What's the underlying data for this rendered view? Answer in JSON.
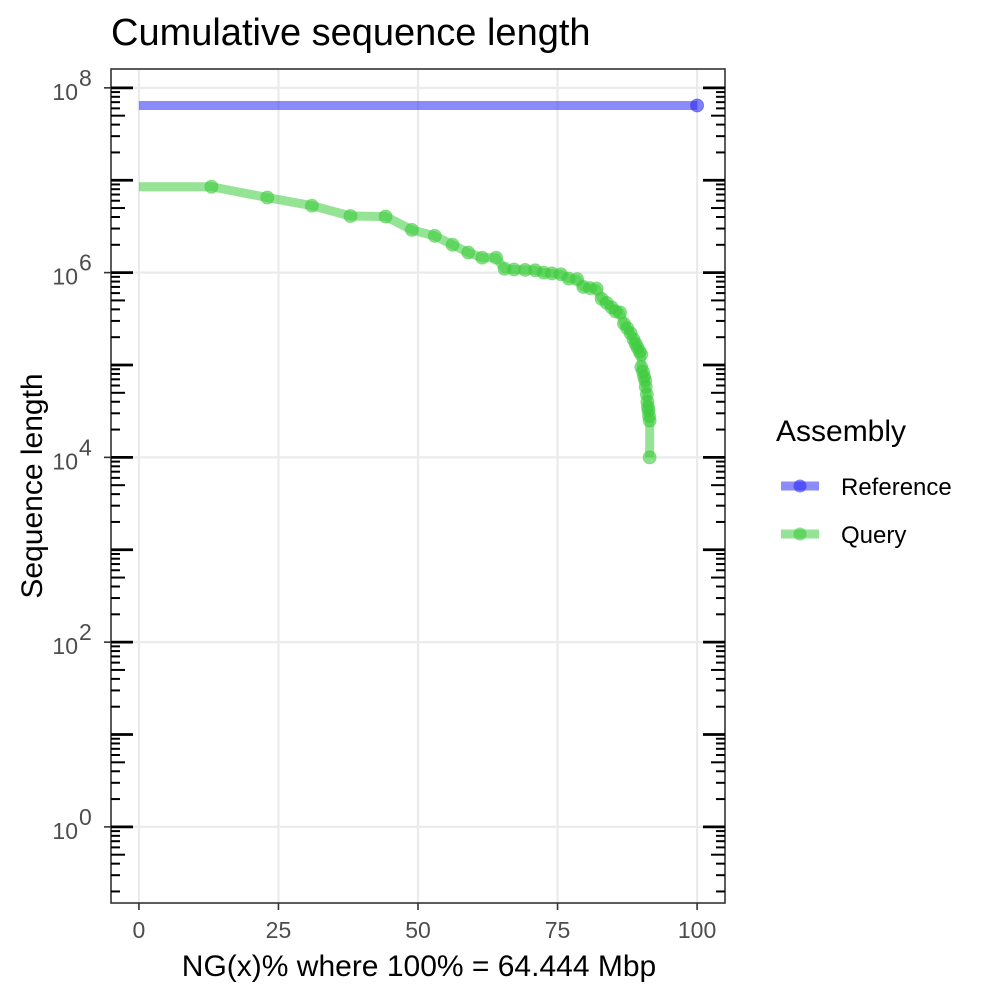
{
  "chart_data": {
    "type": "line",
    "title": "Cumulative sequence length",
    "xlabel": "NG(x)% where 100% = 64.444 Mbp",
    "ylabel": "Sequence length",
    "x_scale": "linear",
    "y_scale": "log10",
    "xlim": [
      -5,
      105
    ],
    "ylim": [
      0.15,
      160000000
    ],
    "x_ticks": [
      0,
      25,
      50,
      75,
      100
    ],
    "y_ticks": [
      {
        "value": 1,
        "base": "10",
        "exp": "0"
      },
      {
        "value": 100,
        "base": "10",
        "exp": "2"
      },
      {
        "value": 10000,
        "base": "10",
        "exp": "4"
      },
      {
        "value": 1000000,
        "base": "10",
        "exp": "6"
      },
      {
        "value": 100000000,
        "base": "10",
        "exp": "8"
      }
    ],
    "grid": true,
    "legend": {
      "title": "Assembly",
      "position": "right",
      "entries": [
        {
          "label": "Reference",
          "color": "#2b2bf5"
        },
        {
          "label": "Query",
          "color": "#3ecc3e"
        }
      ]
    },
    "series": [
      {
        "name": "Reference",
        "color": "#2b2bf5",
        "line_start_x": 0,
        "points": [
          [
            100,
            64444000
          ]
        ]
      },
      {
        "name": "Query",
        "color": "#3ecc3e",
        "line_start_x": 0,
        "points": [
          [
            13.0,
            8500000
          ],
          [
            23.0,
            6500000
          ],
          [
            31.0,
            5300000
          ],
          [
            37.9,
            4100000
          ],
          [
            44.2,
            4050000
          ],
          [
            48.9,
            2900000
          ],
          [
            53.0,
            2500000
          ],
          [
            56.2,
            2000000
          ],
          [
            59.0,
            1650000
          ],
          [
            61.5,
            1450000
          ],
          [
            64.0,
            1450000
          ],
          [
            65.5,
            1100000
          ],
          [
            67.2,
            1080000
          ],
          [
            69.2,
            1070000
          ],
          [
            71.0,
            1060000
          ],
          [
            72.5,
            1000000
          ],
          [
            74.0,
            980000
          ],
          [
            75.6,
            960000
          ],
          [
            77.0,
            860000
          ],
          [
            78.5,
            850000
          ],
          [
            79.6,
            700000
          ],
          [
            80.8,
            680000
          ],
          [
            82.0,
            670000
          ],
          [
            82.9,
            520000
          ],
          [
            83.8,
            470000
          ],
          [
            84.7,
            420000
          ],
          [
            85.4,
            380000
          ],
          [
            86.2,
            370000
          ],
          [
            86.9,
            280000
          ],
          [
            87.5,
            250000
          ],
          [
            88.1,
            220000
          ],
          [
            88.6,
            190000
          ],
          [
            89.0,
            170000
          ],
          [
            89.3,
            155000
          ],
          [
            89.7,
            140000
          ],
          [
            90.0,
            130000
          ],
          [
            90.0,
            95000
          ],
          [
            90.3,
            85000
          ],
          [
            90.5,
            75000
          ],
          [
            90.7,
            68000
          ],
          [
            90.8,
            58000
          ],
          [
            91.0,
            48000
          ],
          [
            91.1,
            40000
          ],
          [
            91.2,
            35000
          ],
          [
            91.3,
            32000
          ],
          [
            91.4,
            28000
          ],
          [
            91.5,
            25000
          ],
          [
            91.5,
            10000
          ]
        ]
      }
    ]
  }
}
